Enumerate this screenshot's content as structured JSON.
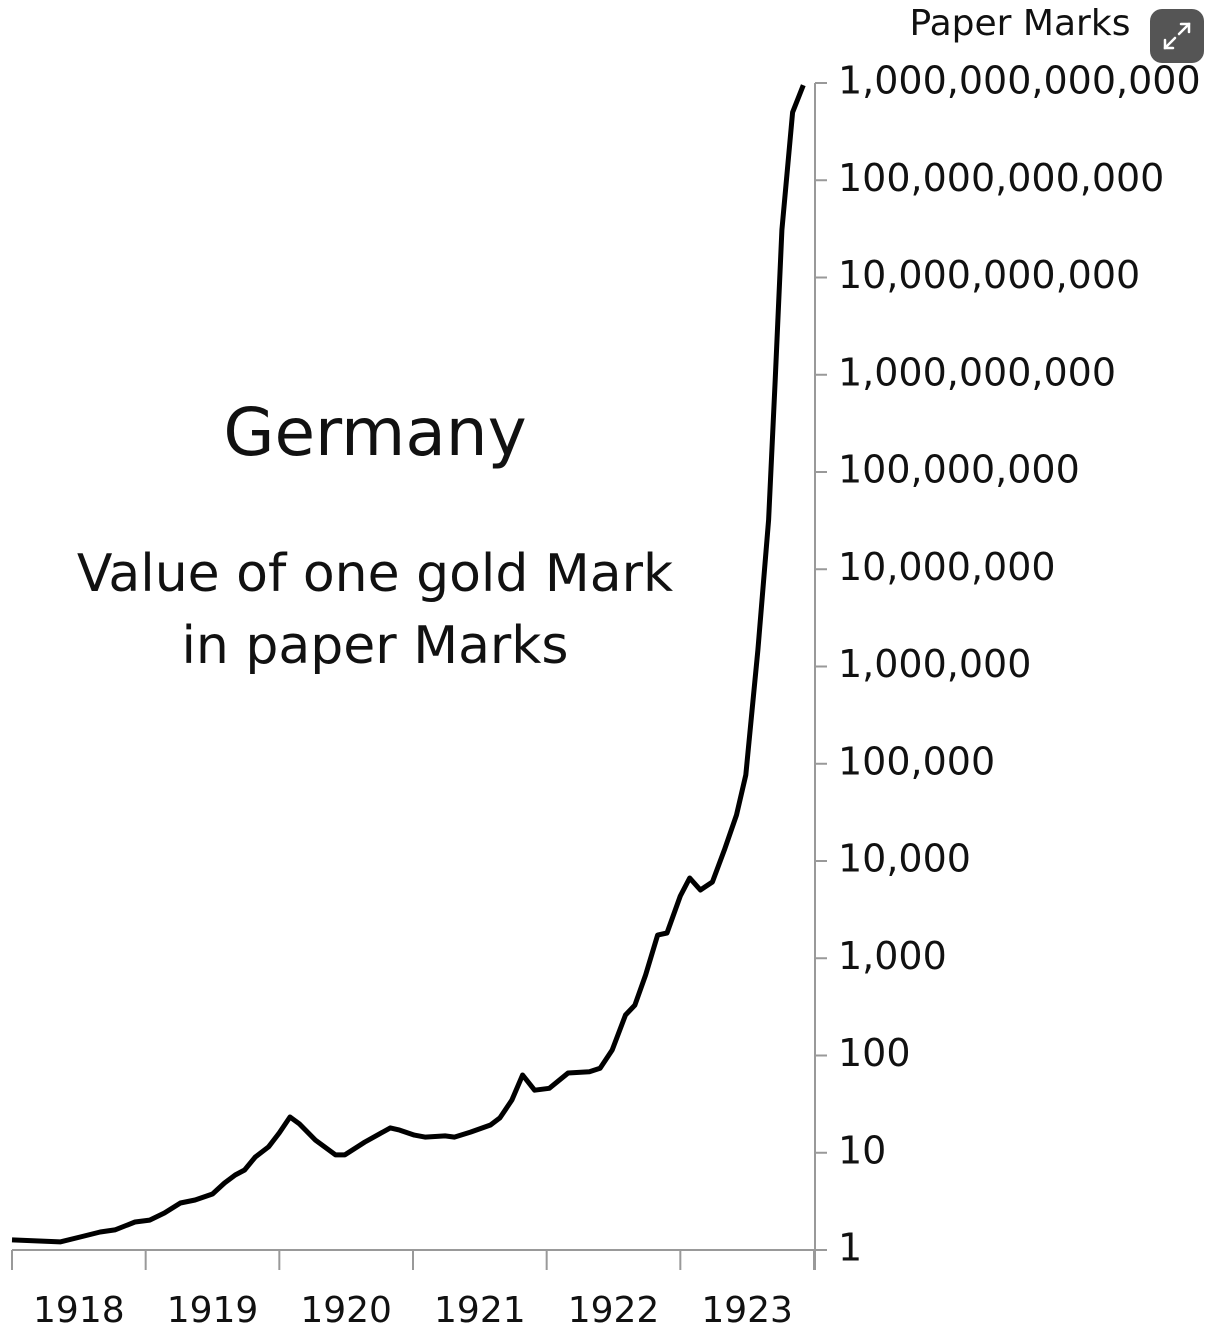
{
  "chart_data": {
    "type": "line",
    "title": "Germany",
    "subtitle": [
      "Value of one gold Mark",
      "in paper Marks"
    ],
    "y_axis_label": "Paper Marks",
    "log_y": true,
    "years": [
      "1918",
      "1919",
      "1920",
      "1921",
      "1922",
      "1923"
    ],
    "xlim": [
      1918,
      1924
    ],
    "xticks": [
      1918,
      1919,
      1920,
      1921,
      1922,
      1923,
      1924
    ],
    "ylim": [
      1,
      1000000000000
    ],
    "yticks": [
      1,
      10,
      100,
      {
        "value": 1000,
        "label": "1,000"
      },
      {
        "value": 10000,
        "label": "10,000"
      },
      {
        "value": 100000,
        "label": "100,000"
      },
      {
        "value": 1000000,
        "label": "1,000,000"
      },
      {
        "value": 10000000,
        "label": "10,000,000"
      },
      {
        "value": 100000000,
        "label": "100,000,000"
      },
      {
        "value": 1000000000,
        "label": "1,000,000,000"
      },
      {
        "value": 10000000000,
        "label": "10,000,000,000"
      },
      {
        "value": 100000000000,
        "label": "100,000,000,000"
      },
      {
        "value": 1000000000000,
        "label": "1,000,000,000,000"
      }
    ],
    "x": [
      1918.0,
      1918.36,
      1918.51,
      1918.66,
      1918.77,
      1918.92,
      1919.03,
      1919.14,
      1919.26,
      1919.37,
      1919.5,
      1919.59,
      1919.67,
      1919.74,
      1919.82,
      1919.92,
      1920.0,
      1920.08,
      1920.15,
      1920.27,
      1920.42,
      1920.49,
      1920.64,
      1920.83,
      1920.9,
      1921.01,
      1921.09,
      1921.24,
      1921.31,
      1921.43,
      1921.58,
      1921.65,
      1921.74,
      1921.82,
      1921.91,
      1922.02,
      1922.16,
      1922.32,
      1922.4,
      1922.49,
      1922.59,
      1922.66,
      1922.74,
      1922.83,
      1922.9,
      1923.0,
      1923.07,
      1923.15,
      1923.24,
      1923.33,
      1923.42,
      1923.49,
      1923.58,
      1923.66,
      1923.71,
      1923.76,
      1923.84,
      1923.92
    ],
    "values": [
      1.27,
      1.21,
      1.36,
      1.53,
      1.61,
      1.94,
      2.03,
      2.4,
      3.04,
      3.27,
      3.77,
      4.89,
      5.9,
      6.65,
      9.04,
      11.5,
      16,
      23.3,
      19.8,
      13.5,
      9.5,
      9.5,
      12.9,
      18,
      17.1,
      15.2,
      14.5,
      14.9,
      14.5,
      16.3,
      19.3,
      22.8,
      34.9,
      63,
      44,
      46,
      66,
      68,
      74,
      114,
      261,
      330,
      673,
      1730,
      1820,
      4370,
      6680,
      5030,
      6080,
      13000,
      29700,
      76600,
      1480000,
      32100000,
      883000000,
      30900000000,
      500000000000,
      950000000000
    ],
    "color": "#000000"
  }
}
